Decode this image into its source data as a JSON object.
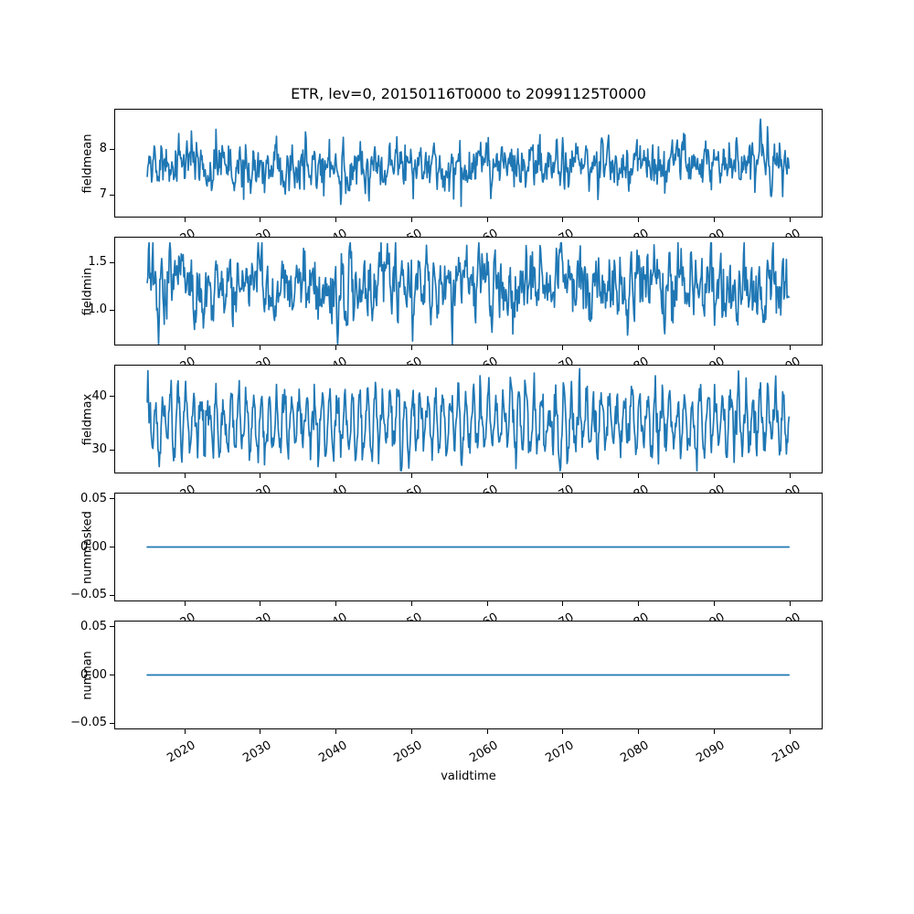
{
  "chart_data": {
    "type": "line",
    "title": "ETR, lev=0, 20150116T0000 to 20991125T0000",
    "xlabel": "validtime",
    "grid": false,
    "legend": false,
    "line_color": "#1f77b4",
    "line_width": 1.7,
    "x_start": 2015.04,
    "x_end": 2099.9,
    "n_points": 1019,
    "xlim": [
      2010.68,
      2104.35
    ],
    "xticks": [
      2020,
      2030,
      2040,
      2050,
      2060,
      2070,
      2080,
      2090,
      2100
    ],
    "xtick_labels": [
      "2020",
      "2030",
      "2040",
      "2050",
      "2060",
      "2070",
      "2080",
      "2090",
      "2100"
    ],
    "subplots": [
      {
        "ylabel": "fieldmean",
        "yticks": [
          8,
          7
        ],
        "ytick_labels": [
          "8",
          "7"
        ],
        "ylim": [
          6.5,
          8.88
        ],
        "series": {
          "kind": "seasonal_noise",
          "mean": 7.68,
          "season_amp": 0.1,
          "season_phase": 1.0,
          "noise_std": 0.24,
          "ar": 0.5,
          "clip": [
            6.57,
            8.85
          ],
          "seed": 1101
        }
      },
      {
        "ylabel": "fieldmin",
        "yticks": [
          1.5,
          1.0
        ],
        "ytick_labels": [
          "1.5",
          "1.0"
        ],
        "ylim": [
          0.625,
          1.775
        ],
        "series": {
          "kind": "seasonal_noise",
          "mean": 1.26,
          "season_amp": 0.07,
          "season_phase": 2.0,
          "noise_std": 0.165,
          "ar": 0.5,
          "clip": [
            0.64,
            1.71
          ],
          "seed": 2202
        }
      },
      {
        "ylabel": "fieldmax",
        "yticks": [
          40,
          30
        ],
        "ytick_labels": [
          "40",
          "30"
        ],
        "ylim": [
          25.6,
          45.9
        ],
        "series": {
          "kind": "seasonal_noise",
          "mean": 35.2,
          "season_amp": 4.7,
          "season_phase": 0.6,
          "noise_std": 1.9,
          "ar": 0.3,
          "clip": [
            26.1,
            45.2
          ],
          "seed": 3303
        }
      },
      {
        "ylabel": "nummasked",
        "yticks": [
          0.05,
          0.0,
          -0.05
        ],
        "ytick_labels": [
          "0.05",
          "0.00",
          "−0.05"
        ],
        "ylim": [
          -0.0565,
          0.0565
        ],
        "series": {
          "kind": "constant",
          "value": 0.0
        }
      },
      {
        "ylabel": "numnan",
        "yticks": [
          0.05,
          0.0,
          -0.05
        ],
        "ytick_labels": [
          "0.05",
          "0.00",
          "−0.05"
        ],
        "ylim": [
          -0.0565,
          0.0565
        ],
        "series": {
          "kind": "constant",
          "value": 0.0
        }
      }
    ]
  }
}
